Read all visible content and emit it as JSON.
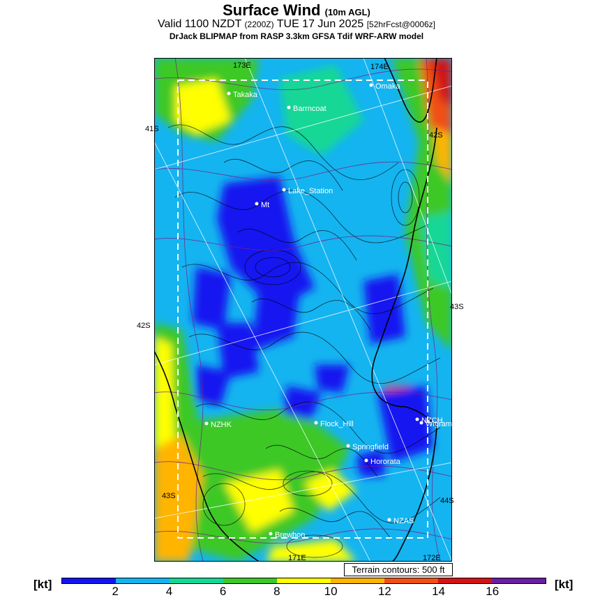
{
  "header": {
    "title": "Surface Wind",
    "title_sub": "(10m AGL)",
    "valid_prefix": "Valid 1100 NZDT",
    "valid_utc": "(2200Z)",
    "valid_date": "TUE 17 Jun 2025",
    "valid_forecast": "[52hrFcst@0006z]",
    "model": "DrJack BLIPMAP from RASP 3.3km GFSA Tdif WRF-ARW model"
  },
  "grid_labels": {
    "lat_left_1": "41S",
    "lat_left_2": "42S",
    "lat_left_3": "43S",
    "lat_right_1": "42S",
    "lat_right_2": "43S",
    "lat_right_3": "44S",
    "lon_top_1": "173E",
    "lon_top_2": "174E",
    "lon_bottom_1": "171E",
    "lon_bottom_2": "172E"
  },
  "places": [
    {
      "name": "Takaka"
    },
    {
      "name": "Barrncoat"
    },
    {
      "name": "Omaka"
    },
    {
      "name": "Lake_Station"
    },
    {
      "name": "Mt"
    },
    {
      "name": "NZHK"
    },
    {
      "name": "Flock_Hill"
    },
    {
      "name": "NZCH"
    },
    {
      "name": "Wigram"
    },
    {
      "name": "Springfield"
    },
    {
      "name": "Hororata"
    },
    {
      "name": "NZAS"
    },
    {
      "name": "Brewhon"
    }
  ],
  "terrain_note": "Terrain contours: 500 ft",
  "colorbar": {
    "unit": "[kt]",
    "ticks": [
      "2",
      "4",
      "6",
      "8",
      "10",
      "12",
      "14",
      "16"
    ],
    "colors": [
      "#1414f0",
      "#14b4f0",
      "#14d796",
      "#3cc828",
      "#ffff00",
      "#ffb400",
      "#f05014",
      "#d21414",
      "#6a1ea0"
    ]
  }
}
